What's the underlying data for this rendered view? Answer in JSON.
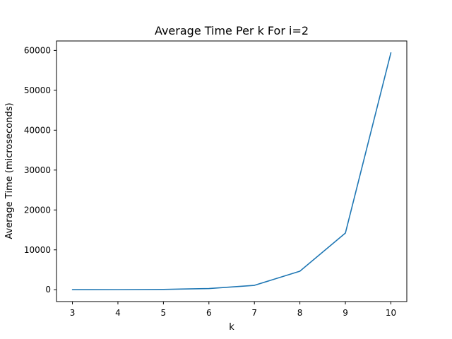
{
  "chart_data": {
    "type": "line",
    "title": "Average Time Per k For i=2",
    "xlabel": "k",
    "ylabel": "Average Time (microseconds)",
    "x": [
      3,
      4,
      5,
      6,
      7,
      8,
      9,
      10
    ],
    "series": [
      {
        "values": [
          0,
          20,
          80,
          300,
          1100,
          4650,
          14200,
          59400
        ]
      }
    ],
    "xlim": [
      2.65,
      10.35
    ],
    "ylim": [
      -2970,
      62370
    ],
    "xticks": [
      3,
      4,
      5,
      6,
      7,
      8,
      9,
      10
    ],
    "yticks": [
      0,
      10000,
      20000,
      30000,
      40000,
      50000,
      60000
    ],
    "grid": false,
    "line_color": "#1f77b4"
  }
}
